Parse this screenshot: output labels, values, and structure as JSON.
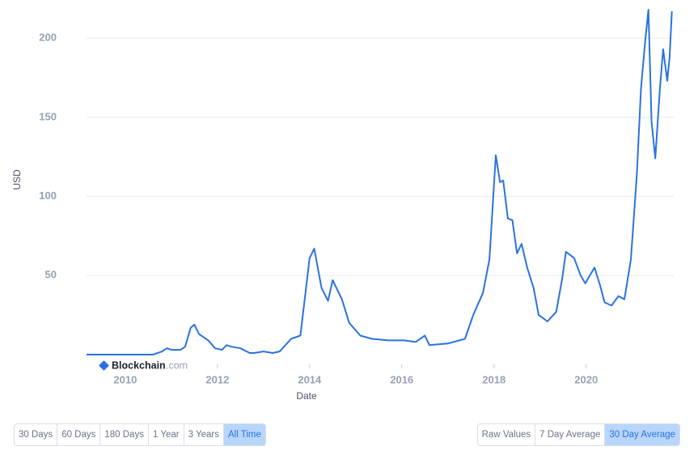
{
  "chart_data": {
    "type": "line",
    "x_label": "Date",
    "y_label": "USD",
    "x": [
      2009.16,
      2010.6,
      2010.8,
      2010.9,
      2011.0,
      2011.2,
      2011.3,
      2011.42,
      2011.5,
      2011.6,
      2011.8,
      2011.95,
      2012.1,
      2012.2,
      2012.3,
      2012.5,
      2012.7,
      2012.8,
      2013.0,
      2013.2,
      2013.35,
      2013.6,
      2013.8,
      2014.0,
      2014.1,
      2014.26,
      2014.4,
      2014.5,
      2014.7,
      2014.86,
      2015.1,
      2015.35,
      2015.7,
      2016.05,
      2016.3,
      2016.5,
      2016.6,
      2017.0,
      2017.37,
      2017.55,
      2017.76,
      2017.9,
      2018.04,
      2018.13,
      2018.2,
      2018.3,
      2018.4,
      2018.5,
      2018.6,
      2018.72,
      2018.86,
      2018.97,
      2019.16,
      2019.35,
      2019.48,
      2019.56,
      2019.74,
      2019.88,
      2019.98,
      2020.18,
      2020.3,
      2020.4,
      2020.55,
      2020.7,
      2020.83,
      2020.97,
      2021.1,
      2021.19,
      2021.28,
      2021.35,
      2021.42,
      2021.5,
      2021.6,
      2021.67,
      2021.76,
      2021.81,
      2021.86
    ],
    "values": [
      0,
      0,
      2,
      4,
      3,
      3,
      5,
      17,
      19,
      13,
      9,
      4,
      3,
      6,
      5,
      4,
      1,
      1,
      2,
      1,
      2,
      10,
      12,
      61,
      67,
      42,
      34,
      47,
      35,
      20,
      12,
      10,
      9,
      9,
      8,
      12,
      6,
      7,
      10,
      25,
      39,
      60,
      126,
      109,
      110,
      86,
      85,
      64,
      70,
      55,
      42,
      25,
      21,
      27,
      48,
      65,
      61,
      50,
      45,
      55,
      44,
      33,
      31,
      37,
      35,
      60,
      114,
      168,
      198,
      218,
      147,
      124,
      168,
      193,
      173,
      188,
      217
    ],
    "color": "#2a72e0",
    "xlim": [
      2009.16,
      2021.9
    ],
    "xticks": [
      2010,
      2012,
      2014,
      2016,
      2018,
      2020
    ],
    "ylim": [
      0,
      220
    ],
    "yticks": [
      50,
      100,
      150,
      200
    ],
    "grid": true
  },
  "logo": {
    "name": "Blockchain",
    "suffix": ".com"
  },
  "controls": {
    "ranges": [
      "30 Days",
      "60 Days",
      "180 Days",
      "1 Year",
      "3 Years",
      "All Time"
    ],
    "selected_range": 5,
    "modes": [
      "Raw Values",
      "7 Day Average",
      "30 Day Average"
    ],
    "selected_mode": 2
  }
}
